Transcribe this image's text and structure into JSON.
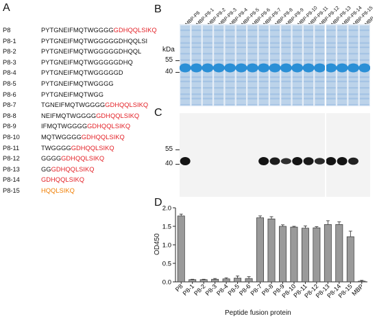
{
  "panels": {
    "a": "A",
    "b": "B",
    "c": "C",
    "d": "D"
  },
  "sequences": [
    {
      "name": "P8",
      "parts": [
        {
          "t": "PYTGNEIFMQTWGGGG",
          "c": ""
        },
        {
          "t": "GDHQQLSIKQ",
          "c": "red"
        }
      ]
    },
    {
      "name": "P8-1",
      "parts": [
        {
          "t": "PYTGNEIFMQTWGGGGGDHQQLSI",
          "c": ""
        }
      ]
    },
    {
      "name": "P8-2",
      "parts": [
        {
          "t": "PYTGNEIFMQTWGGGGGDHQQL",
          "c": ""
        }
      ]
    },
    {
      "name": "P8-3",
      "parts": [
        {
          "t": "PYTGNEIFMQTWGGGGGDHQ",
          "c": ""
        }
      ]
    },
    {
      "name": "P8-4",
      "parts": [
        {
          "t": "PYTGNEIFMQTWGGGGGD",
          "c": ""
        }
      ]
    },
    {
      "name": "P8-5",
      "parts": [
        {
          "t": "PYTGNEIFMQTWGGGG",
          "c": ""
        }
      ]
    },
    {
      "name": "P8-6",
      "parts": [
        {
          "t": "PYTGNEIFMQTWGG",
          "c": ""
        }
      ]
    },
    {
      "name": "P8-7",
      "parts": [
        {
          "t": "TGNEIFMQTWGGGG",
          "c": ""
        },
        {
          "t": "GDHQQLSIKQ",
          "c": "red"
        }
      ]
    },
    {
      "name": "P8-8",
      "parts": [
        {
          "t": "NEIFMQTWGGGG",
          "c": ""
        },
        {
          "t": "GDHQQLSIKQ",
          "c": "red"
        }
      ]
    },
    {
      "name": "P8-9",
      "parts": [
        {
          "t": "IFMQTWGGGG",
          "c": ""
        },
        {
          "t": "GDHQQLSIKQ",
          "c": "red"
        }
      ]
    },
    {
      "name": "P8-10",
      "parts": [
        {
          "t": "MQTWGGGG",
          "c": ""
        },
        {
          "t": "GDHQQLSIKQ",
          "c": "red"
        }
      ]
    },
    {
      "name": "P8-11",
      "parts": [
        {
          "t": "TWGGGG",
          "c": ""
        },
        {
          "t": "GDHQQLSIKQ",
          "c": "red"
        }
      ]
    },
    {
      "name": "P8-12",
      "parts": [
        {
          "t": "GGGG",
          "c": ""
        },
        {
          "t": "GDHQQLSIKQ",
          "c": "red"
        }
      ]
    },
    {
      "name": "P8-13",
      "parts": [
        {
          "t": "GG",
          "c": ""
        },
        {
          "t": "GDHQQLSIKQ",
          "c": "red"
        }
      ]
    },
    {
      "name": "P8-14",
      "parts": [
        {
          "t": "GDHQQLSIKQ",
          "c": "red"
        }
      ]
    },
    {
      "name": "P8-15",
      "parts": [
        {
          "t": "HQQLSIKQ",
          "c": "orange"
        }
      ]
    }
  ],
  "gel_lanes": [
    "MBP-P8",
    "MBP-P8-1",
    "MBP-P8-2",
    "MBP-P8-3",
    "MBP-P8-4",
    "MBP-P8-5",
    "MBP-P8-6",
    "MBP-P8-7",
    "MBP-P8-8",
    "MBP-P8-9",
    "MBP-P8-10",
    "MBP-P8-11",
    "MBP-P8-12",
    "MBP-P8-13",
    "MBP-P8-14",
    "MBP-P8-15",
    "MBP"
  ],
  "kda": {
    "unit": "kDa",
    "marker_55": "55",
    "marker_40": "40"
  },
  "blot_signal": [
    1,
    0,
    0,
    0,
    0,
    0,
    0,
    1,
    0.9,
    0.7,
    1,
    0.95,
    0.75,
    1,
    1,
    0.85,
    0
  ],
  "colors": {
    "red": "#e31e24",
    "orange": "#f07d00",
    "coomassie": "#2a8fd6",
    "bar": "#9a9a9a"
  },
  "chart_data": {
    "type": "bar",
    "categories": [
      "P8",
      "P8-1",
      "P8-2",
      "P8-3",
      "P8-4",
      "P8-5",
      "P8-6",
      "P8-7",
      "P8-8",
      "P8-9",
      "P8-10",
      "P8-11",
      "P8-12",
      "P8-13",
      "P8-14",
      "P8-15",
      "MBP"
    ],
    "values": [
      1.78,
      0.06,
      0.06,
      0.07,
      0.08,
      0.1,
      0.09,
      1.73,
      1.7,
      1.5,
      1.48,
      1.45,
      1.46,
      1.55,
      1.55,
      1.22,
      0.02
    ],
    "errors": [
      0.05,
      0.01,
      0.01,
      0.02,
      0.03,
      0.06,
      0.05,
      0.05,
      0.06,
      0.04,
      0.02,
      0.06,
      0.03,
      0.1,
      0.07,
      0.15,
      0.02
    ],
    "ylabel": "OD450",
    "xlabel": "Peptide fusion protein",
    "ylim": [
      0,
      2.0
    ],
    "yticks": [
      "0.0",
      "0.5",
      "1.0",
      "1.5",
      "2.0"
    ],
    "grid": false
  }
}
